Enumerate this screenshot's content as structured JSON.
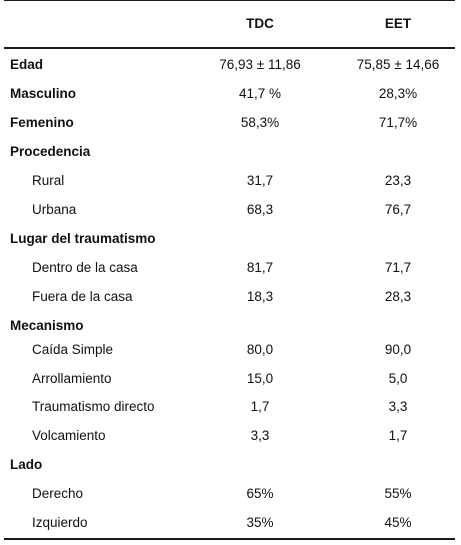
{
  "table": {
    "columns": {
      "tdc": "TDC",
      "eet": "EET"
    },
    "rows": [
      {
        "label": "Edad",
        "tdc": "76,93 ± 11,86",
        "eet": "75,85 ± 14,66"
      },
      {
        "label": "Masculino",
        "tdc": "41,7 %",
        "eet": "28,3%"
      },
      {
        "label": "Femenino",
        "tdc": "58,3%",
        "eet": "71,7%"
      },
      {
        "label": "Procedencia",
        "tdc": "",
        "eet": ""
      },
      {
        "label": "Rural",
        "tdc": "31,7",
        "eet": "23,3"
      },
      {
        "label": "Urbana",
        "tdc": "68,3",
        "eet": "76,7"
      },
      {
        "label": "Lugar del traumatismo",
        "tdc": "",
        "eet": ""
      },
      {
        "label": "Dentro de la casa",
        "tdc": "81,7",
        "eet": "71,7"
      },
      {
        "label": "Fuera de la casa",
        "tdc": "18,3",
        "eet": "28,3"
      },
      {
        "label": "Mecanismo",
        "tdc": "",
        "eet": ""
      },
      {
        "label": "Caída Simple",
        "tdc": "80,0",
        "eet": "90,0"
      },
      {
        "label": "Arrollamiento",
        "tdc": "15,0",
        "eet": "5,0"
      },
      {
        "label": "Traumatismo directo",
        "tdc": "1,7",
        "eet": "3,3"
      },
      {
        "label": "Volcamiento",
        "tdc": "3,3",
        "eet": "1,7"
      },
      {
        "label": "Lado",
        "tdc": "",
        "eet": ""
      },
      {
        "label": "Derecho",
        "tdc": "65%",
        "eet": "55%"
      },
      {
        "label": "Izquierdo",
        "tdc": "35%",
        "eet": "45%"
      }
    ]
  }
}
